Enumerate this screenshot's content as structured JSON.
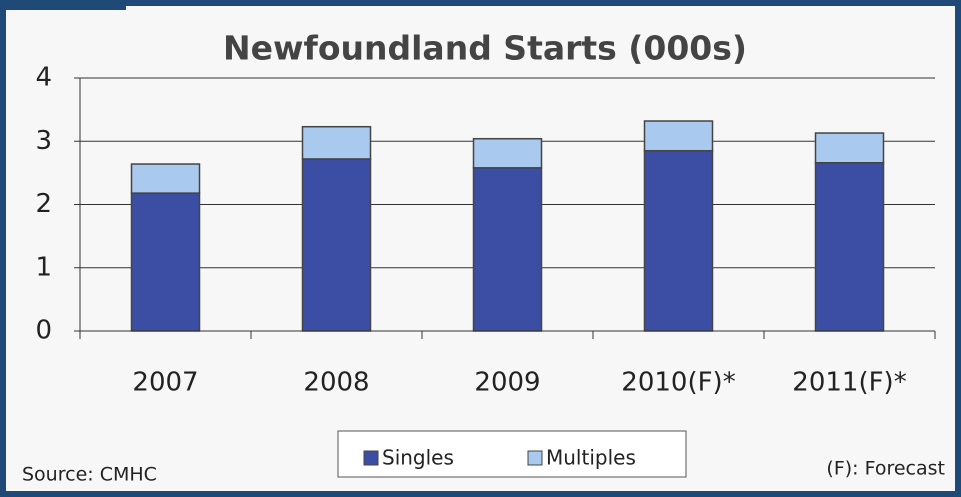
{
  "chart_data": {
    "type": "stacked_bar",
    "title": "Newfoundland Starts (000s)",
    "categories": [
      "2007",
      "2008",
      "2009",
      "2010(F)*",
      "2011(F)*"
    ],
    "series": [
      {
        "name": "Singles",
        "color": "#3b4ea3",
        "values": [
          2.18,
          2.72,
          2.58,
          2.85,
          2.66
        ]
      },
      {
        "name": "Multiples",
        "color": "#a9c9ef",
        "values": [
          0.46,
          0.51,
          0.46,
          0.47,
          0.47
        ]
      }
    ],
    "ylim": [
      0,
      4
    ],
    "yticks": [
      0,
      1,
      2,
      3,
      4
    ],
    "grid": true,
    "source": "Source: CMHC",
    "note": "(F): Forecast"
  }
}
